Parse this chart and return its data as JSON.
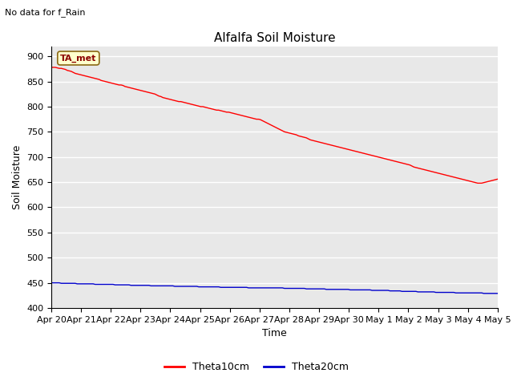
{
  "title": "Alfalfa Soil Moisture",
  "xlabel": "Time",
  "ylabel": "Soil Moisture",
  "note": "No data for f_Rain",
  "legend_label": "TA_met",
  "ylim": [
    400,
    920
  ],
  "yticks": [
    400,
    450,
    500,
    550,
    600,
    650,
    700,
    750,
    800,
    850,
    900
  ],
  "xtick_labels": [
    "Apr 20",
    "Apr 21",
    "Apr 22",
    "Apr 23",
    "Apr 24",
    "Apr 25",
    "Apr 26",
    "Apr 27",
    "Apr 28",
    "Apr 29",
    "Apr 30",
    "May 1",
    "May 2",
    "May 3",
    "May 4",
    "May 5"
  ],
  "background_color": "#e8e8e8",
  "line1_color": "#ff0000",
  "line2_color": "#0000cc",
  "line1_label": "Theta10cm",
  "line2_label": "Theta20cm",
  "legend_box_color": "#ffffcc",
  "legend_box_edge": "#8B6914",
  "title_fontsize": 11,
  "axis_label_fontsize": 9,
  "tick_fontsize": 8,
  "note_fontsize": 8,
  "theta10_y": [
    878,
    878,
    878,
    877,
    876,
    876,
    875,
    874,
    872,
    871,
    870,
    868,
    866,
    865,
    864,
    863,
    862,
    861,
    860,
    859,
    858,
    857,
    856,
    855,
    854,
    852,
    851,
    850,
    849,
    848,
    847,
    846,
    845,
    844,
    843,
    843,
    842,
    840,
    839,
    838,
    837,
    836,
    835,
    834,
    833,
    832,
    831,
    830,
    829,
    828,
    827,
    826,
    825,
    823,
    821,
    820,
    818,
    817,
    816,
    815,
    814,
    813,
    812,
    811,
    810,
    810,
    809,
    808,
    807,
    806,
    805,
    804,
    803,
    802,
    801,
    800,
    800,
    799,
    798,
    797,
    796,
    795,
    794,
    793,
    793,
    792,
    791,
    790,
    789,
    789,
    788,
    787,
    786,
    785,
    784,
    783,
    782,
    781,
    780,
    779,
    778,
    777,
    776,
    775,
    775,
    774,
    772,
    770,
    768,
    766,
    764,
    762,
    760,
    758,
    756,
    754,
    752,
    750,
    749,
    748,
    747,
    746,
    745,
    744,
    742,
    741,
    740,
    739,
    738,
    736,
    734,
    733,
    732,
    731,
    730,
    729,
    728,
    727,
    726,
    725,
    724,
    723,
    722,
    721,
    720,
    719,
    718,
    717,
    716,
    715,
    714,
    713,
    712,
    711,
    710,
    709,
    708,
    707,
    706,
    705,
    704,
    703,
    702,
    701,
    700,
    699,
    698,
    697,
    696,
    695,
    694,
    693,
    692,
    691,
    690,
    689,
    688,
    687,
    686,
    685,
    684,
    682,
    680,
    679,
    678,
    677,
    676,
    675,
    674,
    673,
    672,
    671,
    670,
    669,
    668,
    667,
    666,
    665,
    664,
    663,
    662,
    661,
    660,
    659,
    658,
    657,
    656,
    655,
    654,
    653,
    652,
    651,
    650,
    649,
    648,
    648,
    648,
    649,
    650,
    651,
    652,
    653,
    654,
    655,
    656
  ],
  "theta20_y": [
    450,
    450,
    450,
    450,
    450,
    449,
    449,
    449,
    449,
    449,
    449,
    449,
    449,
    448,
    448,
    448,
    448,
    448,
    448,
    448,
    448,
    448,
    447,
    447,
    447,
    447,
    447,
    447,
    447,
    447,
    447,
    447,
    446,
    446,
    446,
    446,
    446,
    446,
    446,
    446,
    445,
    445,
    445,
    445,
    445,
    445,
    445,
    445,
    445,
    445,
    444,
    444,
    444,
    444,
    444,
    444,
    444,
    444,
    444,
    444,
    444,
    444,
    443,
    443,
    443,
    443,
    443,
    443,
    443,
    443,
    443,
    443,
    443,
    443,
    442,
    442,
    442,
    442,
    442,
    442,
    442,
    442,
    442,
    442,
    442,
    441,
    441,
    441,
    441,
    441,
    441,
    441,
    441,
    441,
    441,
    441,
    441,
    441,
    441,
    440,
    440,
    440,
    440,
    440,
    440,
    440,
    440,
    440,
    440,
    440,
    440,
    440,
    440,
    440,
    440,
    440,
    440,
    439,
    439,
    439,
    439,
    439,
    439,
    439,
    439,
    439,
    439,
    439,
    438,
    438,
    438,
    438,
    438,
    438,
    438,
    438,
    438,
    438,
    437,
    437,
    437,
    437,
    437,
    437,
    437,
    437,
    437,
    437,
    437,
    437,
    436,
    436,
    436,
    436,
    436,
    436,
    436,
    436,
    436,
    436,
    436,
    435,
    435,
    435,
    435,
    435,
    435,
    435,
    435,
    435,
    434,
    434,
    434,
    434,
    434,
    434,
    433,
    433,
    433,
    433,
    433,
    433,
    433,
    433,
    432,
    432,
    432,
    432,
    432,
    432,
    432,
    432,
    432,
    431,
    431,
    431,
    431,
    431,
    431,
    431,
    431,
    431,
    431,
    430,
    430,
    430,
    430,
    430,
    430,
    430,
    430,
    430,
    430,
    430,
    430,
    430,
    430,
    429,
    429,
    429,
    429,
    429,
    429,
    429,
    429
  ]
}
